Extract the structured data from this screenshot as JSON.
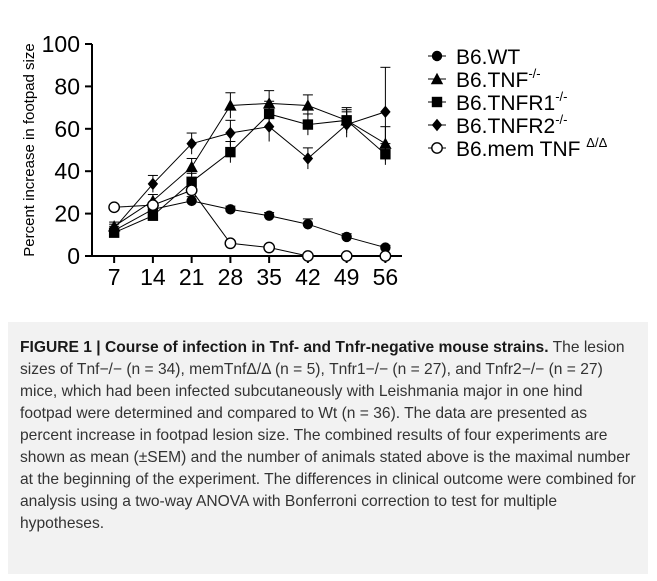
{
  "chart_data": {
    "type": "line",
    "title": "",
    "xlabel": "",
    "ylabel": "Percent increase in footpad size",
    "x": [
      7,
      14,
      21,
      28,
      35,
      42,
      49,
      56
    ],
    "xlim": [
      3,
      59
    ],
    "ylim": [
      0,
      100
    ],
    "yticks": [
      0,
      20,
      40,
      60,
      80,
      100
    ],
    "legend_position": "top-right",
    "series": [
      {
        "name": "B6.WT",
        "name_sup": "",
        "marker": "circle-filled",
        "values": [
          12,
          22,
          26,
          22,
          19,
          15,
          9,
          4
        ],
        "errors": [
          2,
          2,
          2,
          1.5,
          1.5,
          2.5,
          1.5,
          1
        ]
      },
      {
        "name": "B6.TNF",
        "name_sup": "-/-",
        "marker": "triangle-filled",
        "values": [
          14,
          26,
          42,
          71,
          72,
          71,
          64,
          53
        ],
        "errors": [
          2,
          3,
          4,
          6,
          6,
          5,
          6,
          8
        ]
      },
      {
        "name": "B6.TNFR1",
        "name_sup": "-/-",
        "marker": "square-filled",
        "values": [
          11,
          19,
          35,
          49,
          67,
          62,
          64,
          48
        ],
        "errors": [
          2,
          2,
          4,
          5,
          6,
          5,
          5,
          5
        ]
      },
      {
        "name": "B6.TNFR2",
        "name_sup": "-/-",
        "marker": "diamond-filled",
        "values": [
          13,
          34,
          53,
          58,
          61,
          46,
          62,
          68
        ],
        "errors": [
          2,
          4,
          5,
          6,
          7,
          5,
          6,
          21
        ]
      },
      {
        "name": "B6.mem TNF ",
        "name_sup": "Δ/Δ",
        "marker": "circle-open",
        "values": [
          23,
          24,
          31,
          6,
          4,
          0,
          0,
          0
        ],
        "errors": [
          1,
          1,
          1,
          1,
          0.5,
          0.5,
          0.5,
          0.5
        ]
      }
    ]
  },
  "caption": {
    "label": "FIGURE 1 |",
    "title": "Course of infection in Tnf- and Tnfr-negative mouse strains.",
    "body": "The lesion sizes of Tnf−/− (n = 34), memTnfΔ/Δ (n = 5), Tnfr1−/− (n = 27), and Tnfr2−/− (n = 27) mice, which had been infected subcutaneously with Leishmania major in one hind footpad were determined and compared to Wt (n = 36). The data are presented as percent increase in footpad lesion size. The combined results of four experiments are shown as mean (±SEM) and the number of animals stated above is the maximal number at the beginning of the experiment. The differences in clinical outcome were combined for analysis using a two-way ANOVA with Bonferroni correction to test for multiple hypotheses."
  }
}
